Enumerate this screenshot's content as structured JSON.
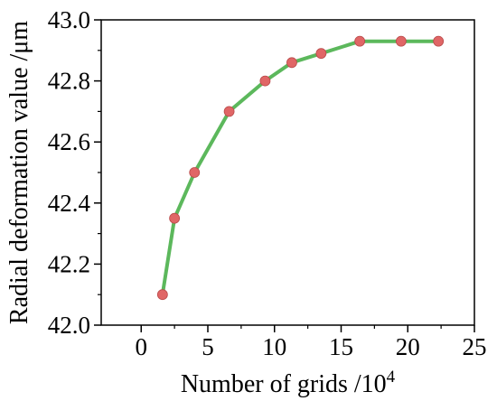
{
  "chart_data": {
    "type": "line",
    "title": "",
    "xlabel": "Number of grids /10",
    "xlabel_superscript": "4",
    "ylabel": "Radial deformation value /μm",
    "xlim": [
      -3,
      25
    ],
    "ylim": [
      42.0,
      43.0
    ],
    "x_ticks": [
      0,
      5,
      10,
      15,
      20,
      25
    ],
    "y_ticks": [
      42.0,
      42.2,
      42.4,
      42.6,
      42.8,
      43.0
    ],
    "x_tick_labels": [
      "0",
      "5",
      "10",
      "15",
      "20",
      "25"
    ],
    "y_tick_labels": [
      "42.0",
      "42.2",
      "42.4",
      "42.6",
      "42.8",
      "43.0"
    ],
    "grid": false,
    "series": [
      {
        "x": [
          1.6,
          2.5,
          4.0,
          6.6,
          9.3,
          11.3,
          13.5,
          16.4,
          19.5,
          22.3
        ],
        "y": [
          42.1,
          42.35,
          42.5,
          42.7,
          42.8,
          42.86,
          42.89,
          42.93,
          42.93,
          42.93
        ],
        "line_color": "#5cb85c",
        "marker_color": "#e06666",
        "marker": "circle"
      }
    ]
  }
}
